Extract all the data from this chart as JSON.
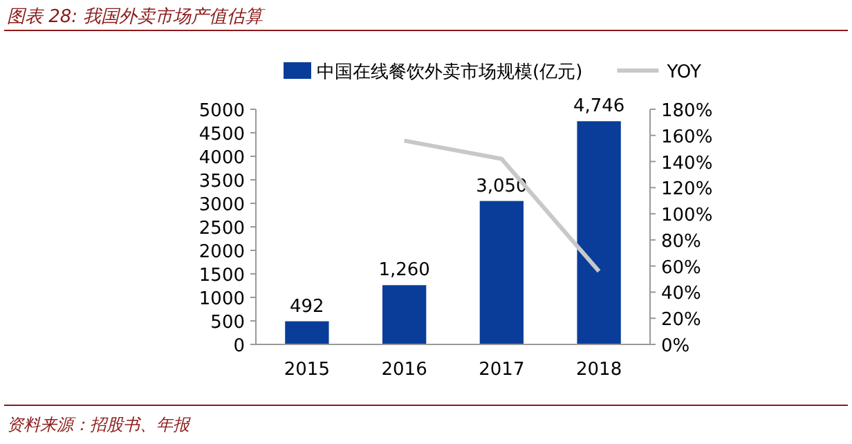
{
  "chart_data": {
    "type": "bar",
    "title": "图表 28: 我国外卖市场产值估算",
    "categories": [
      "2015",
      "2016",
      "2017",
      "2018"
    ],
    "series": [
      {
        "name": "中国在线餐饮外卖市场规模(亿元)",
        "color": "#0a3d9a",
        "values": [
          492,
          1260,
          3050,
          4746
        ],
        "value_labels": [
          "492",
          "1,260",
          "3,050",
          "4,746"
        ]
      },
      {
        "name": "YOY",
        "type": "line",
        "axis": "y2",
        "color": "#c8c8c8",
        "values": [
          null,
          156,
          142,
          56
        ]
      }
    ],
    "ylim": [
      0,
      5000
    ],
    "yticks": [
      0,
      500,
      1000,
      1500,
      2000,
      2500,
      3000,
      3500,
      4000,
      4500,
      5000
    ],
    "y2lim": [
      0,
      180
    ],
    "y2ticks": [
      {
        "value": 0,
        "label": "0%"
      },
      {
        "value": 20,
        "label": "20%"
      },
      {
        "value": 40,
        "label": "40%"
      },
      {
        "value": 60,
        "label": "60%"
      },
      {
        "value": 80,
        "label": "80%"
      },
      {
        "value": 100,
        "label": "100%"
      },
      {
        "value": 120,
        "label": "120%"
      },
      {
        "value": 140,
        "label": "140%"
      },
      {
        "value": 160,
        "label": "160%"
      },
      {
        "value": 180,
        "label": "180%"
      }
    ],
    "legend": "top",
    "grid": false,
    "line_style": "solid",
    "marker": "none",
    "annotations": [
      "资料来源：招股书、年报"
    ]
  }
}
